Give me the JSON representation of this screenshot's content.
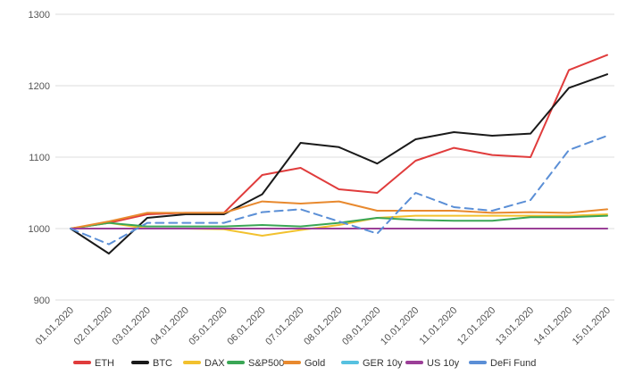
{
  "chart_data": {
    "type": "line",
    "title": "",
    "xlabel": "",
    "ylabel": "",
    "x": [
      "01.01.2020",
      "02.01.2020",
      "03.01.2020",
      "04.01.2020",
      "05.01.2020",
      "06.01.2020",
      "07.01.2020",
      "08.01.2020",
      "09.01.2020",
      "10.01.2020",
      "11.01.2020",
      "12.01.2020",
      "13.01.2020",
      "14.01.2020",
      "15.01.2020"
    ],
    "ylim": [
      900,
      1300
    ],
    "yticks": [
      900,
      1000,
      1100,
      1200,
      1300
    ],
    "grid": "horizontal",
    "legend_position": "bottom",
    "series": [
      {
        "name": "ETH",
        "color": "#e03c3c",
        "dash": "solid",
        "values": [
          1000,
          1008,
          1020,
          1022,
          1022,
          1075,
          1085,
          1055,
          1050,
          1095,
          1113,
          1103,
          1100,
          1222,
          1243
        ]
      },
      {
        "name": "BTC",
        "color": "#1a1a1a",
        "dash": "solid",
        "values": [
          1000,
          965,
          1015,
          1020,
          1020,
          1048,
          1120,
          1114,
          1091,
          1125,
          1135,
          1130,
          1133,
          1197,
          1216
        ]
      },
      {
        "name": "DAX",
        "color": "#f2c12e",
        "dash": "solid",
        "values": [
          1000,
          1008,
          1000,
          1000,
          999,
          990,
          998,
          1005,
          1015,
          1018,
          1018,
          1018,
          1018,
          1018,
          1020
        ]
      },
      {
        "name": "S&P500",
        "color": "#3aa655",
        "dash": "solid",
        "values": [
          1000,
          1008,
          1003,
          1003,
          1003,
          1005,
          1003,
          1008,
          1015,
          1012,
          1011,
          1011,
          1016,
          1016,
          1018
        ]
      },
      {
        "name": "Gold",
        "color": "#e8892e",
        "dash": "solid",
        "values": [
          1000,
          1010,
          1022,
          1022,
          1022,
          1038,
          1035,
          1038,
          1025,
          1025,
          1025,
          1022,
          1023,
          1022,
          1027
        ]
      },
      {
        "name": "GER 10y",
        "color": "#56c1e0",
        "dash": "solid",
        "values": [
          1000,
          1000,
          1000,
          1000,
          1000,
          1000,
          1000,
          1000,
          1000,
          1000,
          1000,
          1000,
          1000,
          1000,
          1000
        ]
      },
      {
        "name": "US 10y",
        "color": "#9b3f97",
        "dash": "solid",
        "values": [
          1000,
          1000,
          1000,
          1000,
          1000,
          1000,
          1000,
          1000,
          1000,
          1000,
          1000,
          1000,
          1000,
          1000,
          1000
        ]
      },
      {
        "name": "DeFi Fund",
        "color": "#5b8fd6",
        "dash": "dashed",
        "values": [
          1000,
          978,
          1008,
          1008,
          1008,
          1023,
          1027,
          1010,
          993,
          1050,
          1030,
          1025,
          1040,
          1110,
          1130
        ]
      }
    ]
  }
}
